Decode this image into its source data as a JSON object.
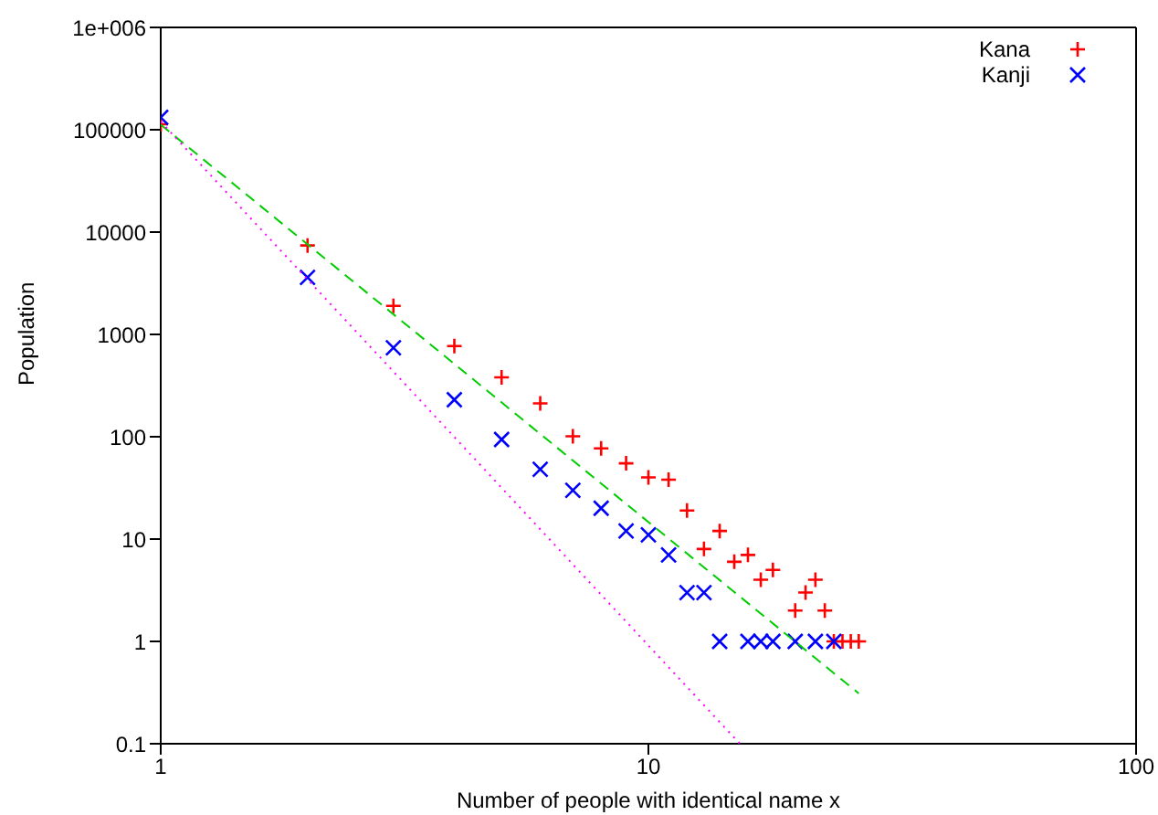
{
  "chart_data": {
    "type": "scatter",
    "xlabel": "Number of people with identical name   x",
    "ylabel": "Population",
    "log": "xy",
    "xlim": [
      1,
      100
    ],
    "ylim": [
      0.1,
      1000000
    ],
    "xticks": [
      1,
      10,
      100
    ],
    "yticks": [
      0.1,
      1,
      10,
      100,
      1000,
      10000,
      100000,
      {
        "value": 1000000,
        "label": "1e+006"
      }
    ],
    "legend": "top right",
    "series": [
      {
        "name": "Kana",
        "color": "#ff0000",
        "marker": "cross",
        "x": [
          1,
          2,
          3,
          4,
          5,
          6,
          7,
          8,
          9,
          10,
          11,
          12,
          13,
          14,
          15,
          16,
          17,
          18,
          20,
          21,
          22,
          23,
          24,
          25,
          26,
          27
        ],
        "values": [
          113000,
          7400,
          1900,
          770,
          380,
          212,
          101,
          77,
          55,
          40,
          38,
          19,
          8,
          12,
          6,
          7,
          4,
          5,
          2,
          3,
          4,
          2,
          1,
          1,
          1,
          1
        ]
      },
      {
        "name": "Kanji",
        "color": "#0000ff",
        "marker": "x",
        "x": [
          1,
          2,
          3,
          4,
          5,
          6,
          7,
          8,
          9,
          10,
          11,
          12,
          13,
          14,
          16,
          17,
          18,
          20,
          22,
          24
        ],
        "values": [
          132000,
          3600,
          740,
          230,
          94,
          48,
          30,
          20,
          12,
          11,
          7,
          3,
          3,
          1,
          1,
          1,
          1,
          1,
          1,
          1
        ]
      },
      {
        "type": "line",
        "color": "#00cc00",
        "line_style": "dashed",
        "marker": "none",
        "x": [
          1,
          27
        ],
        "values": [
          112000,
          0.31
        ]
      },
      {
        "type": "line",
        "color": "#ff00ff",
        "line_style": "dotted",
        "marker": "none",
        "x": [
          1,
          15.4
        ],
        "values": [
          120000,
          0.1
        ]
      }
    ]
  }
}
